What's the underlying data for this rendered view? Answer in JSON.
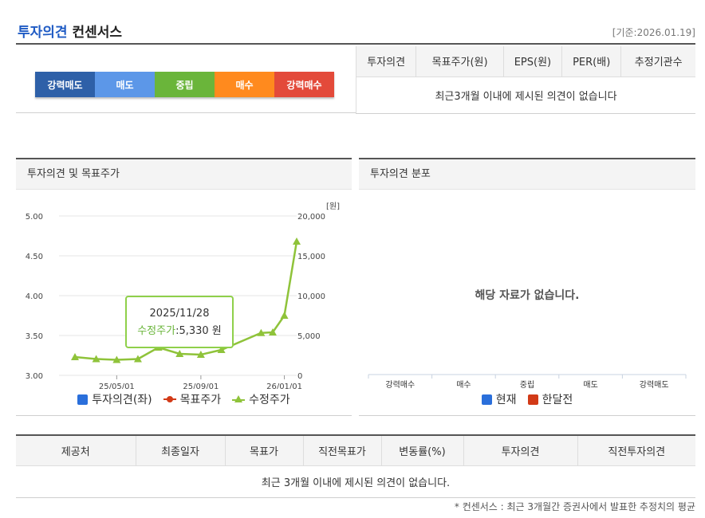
{
  "header": {
    "title_main": "투자의견",
    "title_sub": "컨센서스",
    "base_date": "[기준:2026.01.19]"
  },
  "opinion_scale": [
    "강력매도",
    "매도",
    "중립",
    "매수",
    "강력매수"
  ],
  "consensus_table": {
    "columns": [
      "투자의견",
      "목표주가(원)",
      "EPS(원)",
      "PER(배)",
      "추정기관수"
    ],
    "empty_message": "최근3개월 이내에 제시된 의견이 없습니다"
  },
  "left_panel": {
    "title": "투자의견 및 목표주가",
    "tooltip": {
      "date": "2025/11/28",
      "key": "수정주가",
      "value": ":5,330 원"
    },
    "legend": [
      {
        "label": "투자의견(좌)",
        "color": "#2a6fdb",
        "icon": "blue-square-icon"
      },
      {
        "label": "목표주가",
        "color": "#d23a17",
        "icon": "red-dot-line-icon"
      },
      {
        "label": "수정주가",
        "color": "#8fc33a",
        "icon": "green-triangle-icon"
      }
    ]
  },
  "right_panel": {
    "title": "투자의견 분포",
    "no_data": "해당 자료가 없습니다.",
    "legend": [
      {
        "label": "현재",
        "color": "#2a6fdb"
      },
      {
        "label": "한달전",
        "color": "#d23a17"
      }
    ]
  },
  "chart_data": [
    {
      "type": "line",
      "y_left": {
        "ticks": [
          "5.00",
          "4.50",
          "4.00",
          "3.50",
          "3.00"
        ],
        "ylim": [
          3.0,
          5.0
        ]
      },
      "y_right": {
        "unit": "[원]",
        "ticks": [
          "20,000",
          "15,000",
          "10,000",
          "5,000",
          "0"
        ],
        "ylim": [
          0,
          20000
        ]
      },
      "x_ticks": [
        "25/05/01",
        "25/09/01",
        "26/01/01"
      ],
      "x_tick_dates": [
        "2025-05-01",
        "2025-09-01",
        "2026-01-01"
      ],
      "series": [
        {
          "name": "수정주가",
          "color": "#8fc33a",
          "points": [
            {
              "x": "2025-03-01",
              "y": 2300
            },
            {
              "x": "2025-04-01",
              "y": 2050
            },
            {
              "x": "2025-05-01",
              "y": 1950
            },
            {
              "x": "2025-06-01",
              "y": 2050
            },
            {
              "x": "2025-07-01",
              "y": 3500
            },
            {
              "x": "2025-08-01",
              "y": 2700
            },
            {
              "x": "2025-09-01",
              "y": 2600
            },
            {
              "x": "2025-10-01",
              "y": 3200
            },
            {
              "x": "2025-11-28",
              "y": 5330
            },
            {
              "x": "2025-12-15",
              "y": 5400
            },
            {
              "x": "2026-01-01",
              "y": 7500
            },
            {
              "x": "2026-01-19",
              "y": 16800
            }
          ]
        }
      ]
    },
    {
      "type": "bar",
      "categories": [
        "강력매수",
        "매수",
        "중립",
        "매도",
        "강력매도"
      ],
      "series": []
    }
  ],
  "bottom_table": {
    "columns": [
      "제공처",
      "최종일자",
      "목표가",
      "직전목표가",
      "변동률(%)",
      "투자의견",
      "직전투자의견"
    ],
    "empty_message": "최근 3개월 이내에 제시된 의견이 없습니다."
  },
  "footnote": "* 컨센서스 : 최근 3개월간 증권사에서 발표한 추정치의 평균"
}
